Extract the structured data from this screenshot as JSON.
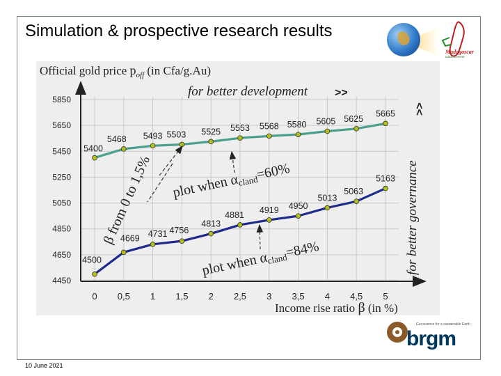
{
  "slide": {
    "title": "Simulation & prospective research results",
    "date": "10 June 2021",
    "logo_right": {
      "text": "Madagascar",
      "subtext": "naturellement"
    },
    "logo_bottom": {
      "text": "brgm",
      "tagline": "Geoscience for a sustainable Earth"
    }
  },
  "chart_data": {
    "type": "line",
    "ylabel_main": "Official gold price",
    "ylabel_symbol": "p",
    "ylabel_sub": "off",
    "ylabel_unit": "(in Cfa/g.Au)",
    "xlabel_main": "Income rise ratio",
    "xlabel_symbol": "β",
    "xlabel_unit": "(in %)",
    "x": [
      0,
      0.5,
      1,
      1.5,
      2,
      2.5,
      3,
      3.5,
      4,
      4.5,
      5
    ],
    "x_tick_labels": [
      "0",
      "0,5",
      "1",
      "1,5",
      "2",
      "2,5",
      "3",
      "3,5",
      "4",
      "4,5",
      "5"
    ],
    "y_ticks": [
      4450,
      4650,
      4850,
      5050,
      5250,
      5450,
      5650,
      5850
    ],
    "ylim": [
      4450,
      5850
    ],
    "xlim": [
      0,
      5
    ],
    "grid": true,
    "series": [
      {
        "values": [
          5400,
          5468,
          5493,
          5503,
          5525,
          5553,
          5568,
          5580,
          5605,
          5625,
          5665
        ],
        "labels": [
          "5400",
          "5468",
          "5493",
          "5503",
          "5525",
          "5553",
          "5568",
          "5580",
          "5605",
          "5625",
          "5665"
        ],
        "color": "#4a9e8c"
      },
      {
        "values": [
          4500,
          4669,
          4731,
          4756,
          4813,
          4881,
          4919,
          4950,
          5013,
          5063,
          5163
        ],
        "labels": [
          "4500",
          "4669",
          "4731",
          "4756",
          "4813",
          "4881",
          "4919",
          "4950",
          "5013",
          "5063",
          "5163"
        ],
        "color": "#1f2a8a"
      }
    ],
    "marker_color": "#b5bf1a",
    "annotations": {
      "top": "for better development",
      "right": "for better governance",
      "beta_range": "β from 0 to 1,5%",
      "plot_60": {
        "prefix": "plot when ",
        "alpha": "α",
        "sub": "cland",
        "suffix": "=60%"
      },
      "plot_84": {
        "prefix": "plot when ",
        "alpha": "α",
        "sub": "cland",
        "suffix": "=84%"
      }
    }
  }
}
